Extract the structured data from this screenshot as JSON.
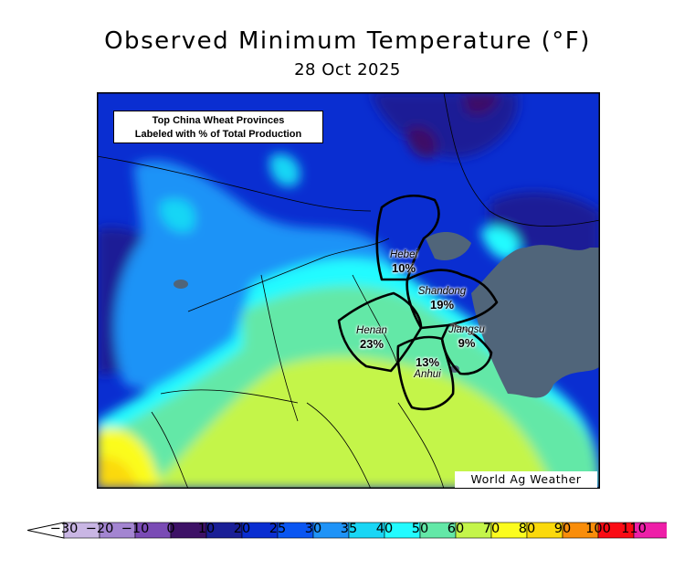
{
  "title": "Observed Minimum Temperature (°F)",
  "date": "28 Oct 2025",
  "note": {
    "line1": "Top China Wheat Provinces",
    "line2": "Labeled with % of Total Production"
  },
  "credit": "World Ag Weather",
  "provinces": [
    {
      "name": "Hebei",
      "pct": "10%"
    },
    {
      "name": "Shandong",
      "pct": "19%"
    },
    {
      "name": "Henan",
      "pct": "23%"
    },
    {
      "name": "Jiangsu",
      "pct": "9%"
    },
    {
      "name": "Anhui",
      "pct": "13%"
    }
  ],
  "legend": {
    "ticks": [
      "−30",
      "−20",
      "−10",
      "0",
      "10",
      "20",
      "25",
      "30",
      "35",
      "40",
      "50",
      "60",
      "70",
      "80",
      "90",
      "100",
      "110"
    ],
    "colors": [
      "#c9b6e4",
      "#a385d1",
      "#7a4bb5",
      "#3d1166",
      "#1a1f96",
      "#0a2ed1",
      "#0a56f2",
      "#1f93f7",
      "#19d6f5",
      "#23fbff",
      "#63e8a7",
      "#c4f54a",
      "#fbfc1e",
      "#fbd90c",
      "#f98d0a",
      "#fa0b14",
      "#ee1fa8"
    ],
    "under_color": "#ffffff",
    "over_color": "#ff5cf0"
  },
  "colors": {
    "cold_deep": "#1a1f96",
    "cold": "#0a2ed1",
    "cool": "#1f93f7",
    "aqua": "#23fbff",
    "mild": "#63e8a7",
    "warm": "#c4f54a",
    "hot": "#fbfc1e",
    "sea": "#50657a"
  }
}
